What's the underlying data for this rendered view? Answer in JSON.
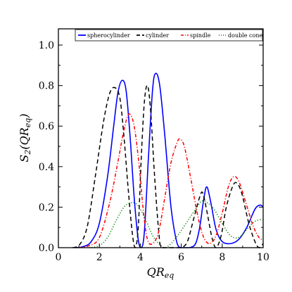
{
  "chart_data": {
    "type": "line",
    "title": "",
    "xlabel_main": "QR",
    "xlabel_sub": "eq",
    "ylabel_main": "S",
    "ylabel_sub2": "2",
    "ylabel_paren": "(QR",
    "ylabel_sub": "eq",
    "ylabel_close": ")",
    "xlim": [
      0,
      10
    ],
    "ylim": [
      0,
      1.08
    ],
    "xticks": [
      0,
      2,
      4,
      6,
      8,
      10
    ],
    "xtick_labels": [
      "0",
      "2",
      "4",
      "6",
      "8",
      "10"
    ],
    "yticks": [
      0.0,
      0.2,
      0.4,
      0.6,
      0.8,
      1.0
    ],
    "ytick_labels": [
      "0.0",
      "0.2",
      "0.4",
      "0.6",
      "0.8",
      "1.0"
    ],
    "grid": false,
    "legend_position": "top",
    "series": [
      {
        "name": "spherocylinder",
        "color": "#0000ff",
        "dash": "solid",
        "points": [
          [
            0.8,
            0.0
          ],
          [
            1.2,
            0.005
          ],
          [
            1.6,
            0.03
          ],
          [
            2.0,
            0.12
          ],
          [
            2.4,
            0.35
          ],
          [
            2.7,
            0.6
          ],
          [
            2.9,
            0.76
          ],
          [
            3.1,
            0.825
          ],
          [
            3.3,
            0.78
          ],
          [
            3.5,
            0.55
          ],
          [
            3.7,
            0.25
          ],
          [
            3.9,
            0.04
          ],
          [
            4.05,
            0.0
          ],
          [
            4.2,
            0.08
          ],
          [
            4.4,
            0.45
          ],
          [
            4.6,
            0.78
          ],
          [
            4.75,
            0.86
          ],
          [
            4.95,
            0.8
          ],
          [
            5.2,
            0.55
          ],
          [
            5.5,
            0.2
          ],
          [
            5.8,
            0.02
          ],
          [
            6.0,
            0.0
          ],
          [
            6.4,
            0.0
          ],
          [
            6.7,
            0.02
          ],
          [
            6.9,
            0.1
          ],
          [
            7.1,
            0.24
          ],
          [
            7.25,
            0.3
          ],
          [
            7.45,
            0.22
          ],
          [
            7.7,
            0.09
          ],
          [
            8.0,
            0.03
          ],
          [
            8.4,
            0.02
          ],
          [
            8.8,
            0.04
          ],
          [
            9.2,
            0.1
          ],
          [
            9.6,
            0.19
          ],
          [
            9.85,
            0.21
          ],
          [
            10.0,
            0.2
          ]
        ]
      },
      {
        "name": "cylinder",
        "color": "#000000",
        "dash": "dashed",
        "points": [
          [
            0.7,
            0.0
          ],
          [
            1.0,
            0.01
          ],
          [
            1.4,
            0.1
          ],
          [
            1.8,
            0.35
          ],
          [
            2.2,
            0.62
          ],
          [
            2.5,
            0.76
          ],
          [
            2.75,
            0.79
          ],
          [
            3.0,
            0.74
          ],
          [
            3.2,
            0.55
          ],
          [
            3.4,
            0.3
          ],
          [
            3.6,
            0.08
          ],
          [
            3.75,
            0.0
          ],
          [
            3.9,
            0.1
          ],
          [
            4.05,
            0.45
          ],
          [
            4.2,
            0.72
          ],
          [
            4.35,
            0.8
          ],
          [
            4.5,
            0.68
          ],
          [
            4.7,
            0.35
          ],
          [
            4.9,
            0.08
          ],
          [
            5.05,
            0.0
          ],
          [
            5.6,
            0.0
          ],
          [
            6.0,
            0.0
          ],
          [
            6.3,
            0.03
          ],
          [
            6.6,
            0.14
          ],
          [
            6.9,
            0.25
          ],
          [
            7.05,
            0.27
          ],
          [
            7.25,
            0.18
          ],
          [
            7.5,
            0.05
          ],
          [
            7.7,
            0.0
          ],
          [
            7.95,
            0.06
          ],
          [
            8.2,
            0.2
          ],
          [
            8.5,
            0.3
          ],
          [
            8.7,
            0.32
          ],
          [
            8.95,
            0.27
          ],
          [
            9.3,
            0.12
          ],
          [
            9.6,
            0.03
          ],
          [
            9.8,
            0.0
          ],
          [
            10.0,
            0.02
          ]
        ]
      },
      {
        "name": "spindle",
        "color": "#ff0000",
        "dash": "dashdot",
        "points": [
          [
            1.0,
            0.0
          ],
          [
            1.5,
            0.01
          ],
          [
            2.0,
            0.05
          ],
          [
            2.5,
            0.22
          ],
          [
            2.9,
            0.42
          ],
          [
            3.2,
            0.58
          ],
          [
            3.45,
            0.66
          ],
          [
            3.7,
            0.6
          ],
          [
            3.95,
            0.4
          ],
          [
            4.15,
            0.18
          ],
          [
            4.35,
            0.04
          ],
          [
            4.6,
            0.02
          ],
          [
            4.9,
            0.08
          ],
          [
            5.2,
            0.25
          ],
          [
            5.5,
            0.42
          ],
          [
            5.8,
            0.52
          ],
          [
            5.95,
            0.535
          ],
          [
            6.15,
            0.5
          ],
          [
            6.45,
            0.35
          ],
          [
            6.8,
            0.16
          ],
          [
            7.1,
            0.05
          ],
          [
            7.4,
            0.02
          ],
          [
            7.7,
            0.06
          ],
          [
            8.0,
            0.17
          ],
          [
            8.3,
            0.3
          ],
          [
            8.55,
            0.35
          ],
          [
            8.8,
            0.33
          ],
          [
            9.1,
            0.24
          ],
          [
            9.5,
            0.11
          ],
          [
            9.8,
            0.05
          ],
          [
            10.0,
            0.04
          ]
        ]
      },
      {
        "name": "double cone",
        "color": "#008000",
        "dash": "dotted",
        "points": [
          [
            1.5,
            0.0
          ],
          [
            2.0,
            0.01
          ],
          [
            2.4,
            0.05
          ],
          [
            2.8,
            0.13
          ],
          [
            3.2,
            0.2
          ],
          [
            3.5,
            0.22
          ],
          [
            3.75,
            0.22
          ],
          [
            4.0,
            0.19
          ],
          [
            4.3,
            0.13
          ],
          [
            4.6,
            0.06
          ],
          [
            4.9,
            0.02
          ],
          [
            5.2,
            0.0
          ],
          [
            5.5,
            0.02
          ],
          [
            5.9,
            0.07
          ],
          [
            6.3,
            0.13
          ],
          [
            6.7,
            0.19
          ],
          [
            7.0,
            0.23
          ],
          [
            7.3,
            0.22
          ],
          [
            7.6,
            0.19
          ],
          [
            8.0,
            0.12
          ],
          [
            8.4,
            0.06
          ],
          [
            8.8,
            0.05
          ],
          [
            9.2,
            0.09
          ],
          [
            9.6,
            0.13
          ],
          [
            10.0,
            0.14
          ]
        ]
      }
    ]
  }
}
